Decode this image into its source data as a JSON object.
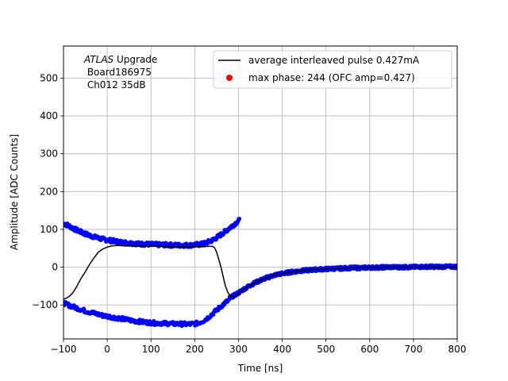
{
  "chart_data": {
    "type": "scatter",
    "xlabel": "Time [ns]",
    "ylabel": "Amplitude [ADC Counts]",
    "xlim": [
      -100,
      800
    ],
    "ylim": [
      -190,
      585
    ],
    "x_ticks": [
      -100,
      0,
      100,
      200,
      300,
      400,
      500,
      600,
      700,
      800
    ],
    "y_ticks": [
      -100,
      0,
      100,
      200,
      300,
      400,
      500
    ],
    "grid": true,
    "legend_position": "top-right",
    "annotation": {
      "line1_italic": "ATLAS",
      "line1_rest": " Upgrade",
      "line2": " Board186975",
      "line3": " Ch012 35dB"
    },
    "legend": [
      {
        "label": "average interleaved pulse 0.427mA",
        "kind": "line",
        "color": "#000000"
      },
      {
        "label": "max phase: 244 (OFC amp=0.427)",
        "kind": "marker",
        "color": "#ff0000"
      }
    ],
    "series": [
      {
        "kind": "scatter",
        "color": "#0000ff",
        "upper_band": {
          "x": [
            -100,
            -90,
            -80,
            -70,
            -60,
            -50,
            -40,
            -30,
            -20,
            -10,
            0,
            10,
            20,
            30,
            40,
            50,
            60,
            70,
            80,
            90,
            100,
            110,
            120,
            130,
            140,
            150,
            160,
            170,
            180,
            190,
            200,
            210,
            220,
            230,
            240,
            250,
            260,
            270,
            280,
            290,
            303
          ],
          "y": [
            115,
            111,
            104,
            98,
            93,
            88,
            84,
            80,
            77,
            74,
            72,
            70,
            68,
            66,
            65,
            64,
            63,
            62,
            61,
            61,
            60,
            60,
            59,
            59,
            59,
            58,
            58,
            58,
            58,
            58,
            59,
            60,
            62,
            66,
            71,
            78,
            86,
            95,
            104,
            113,
            125
          ]
        },
        "lower_band": {
          "x": [
            -100,
            -90,
            -80,
            -70,
            -60,
            -50,
            -40,
            -30,
            -20,
            -10,
            0,
            10,
            20,
            30,
            40,
            50,
            60,
            70,
            80,
            90,
            100,
            110,
            120,
            130,
            140,
            150,
            160,
            185,
            200,
            210,
            220,
            230,
            240,
            250,
            260,
            270,
            280
          ],
          "y": [
            -95,
            -100,
            -104,
            -108,
            -112,
            -116,
            -119,
            -122,
            -125,
            -128,
            -130,
            -132,
            -134,
            -136,
            -138,
            -140,
            -142,
            -143,
            -145,
            -146,
            -147,
            -148,
            -148,
            -149,
            -149,
            -150,
            -150,
            -151,
            -150,
            -147,
            -142,
            -134,
            -124,
            -114,
            -104,
            -94,
            -86
          ]
        },
        "tail": {
          "x": [
            280,
            290,
            300,
            310,
            320,
            330,
            340,
            350,
            360,
            370,
            380,
            390,
            400,
            420,
            440,
            460,
            480,
            500,
            520,
            540,
            560,
            580,
            600,
            620,
            640,
            660,
            680,
            700,
            720,
            740,
            760,
            780,
            800
          ],
          "y": [
            -82,
            -75,
            -68,
            -60,
            -53,
            -46,
            -40,
            -35,
            -30,
            -26,
            -22,
            -19,
            -17,
            -13,
            -10,
            -8,
            -6,
            -5,
            -4,
            -3,
            -2,
            -2,
            -1,
            -1,
            0,
            0,
            0,
            0,
            1,
            1,
            1,
            1,
            1
          ]
        }
      },
      {
        "kind": "line",
        "color": "#000000",
        "x": [
          -100,
          -90,
          -80,
          -70,
          -60,
          -50,
          -40,
          -30,
          -20,
          -10,
          0,
          10,
          20,
          30,
          40,
          50,
          60,
          70,
          80,
          90,
          100,
          110,
          120,
          130,
          140,
          150,
          160,
          170,
          180,
          190,
          200,
          210,
          220,
          230,
          240,
          245,
          250,
          255,
          260,
          265,
          270,
          275,
          280,
          290,
          300,
          310,
          320,
          330,
          340,
          350,
          360,
          370,
          380,
          390,
          400,
          420,
          440,
          460,
          480,
          500,
          520,
          540,
          560,
          580,
          600,
          620,
          640,
          660,
          680,
          700,
          720,
          740,
          760,
          780,
          800
        ],
        "y": [
          -85,
          -80,
          -70,
          -52,
          -30,
          -12,
          8,
          25,
          40,
          48,
          53,
          56,
          57,
          57,
          56,
          56,
          56,
          55,
          55,
          55,
          55,
          55,
          55,
          54,
          54,
          54,
          54,
          54,
          54,
          54,
          54,
          54,
          54,
          55,
          55,
          52,
          40,
          20,
          0,
          -25,
          -50,
          -65,
          -75,
          -80,
          -70,
          -60,
          -53,
          -46,
          -40,
          -35,
          -30,
          -26,
          -22,
          -19,
          -17,
          -13,
          -10,
          -8,
          -6,
          -5,
          -4,
          -3,
          -2,
          -2,
          -1,
          -1,
          0,
          0,
          0,
          0,
          0,
          0,
          0,
          0,
          0
        ]
      }
    ]
  }
}
